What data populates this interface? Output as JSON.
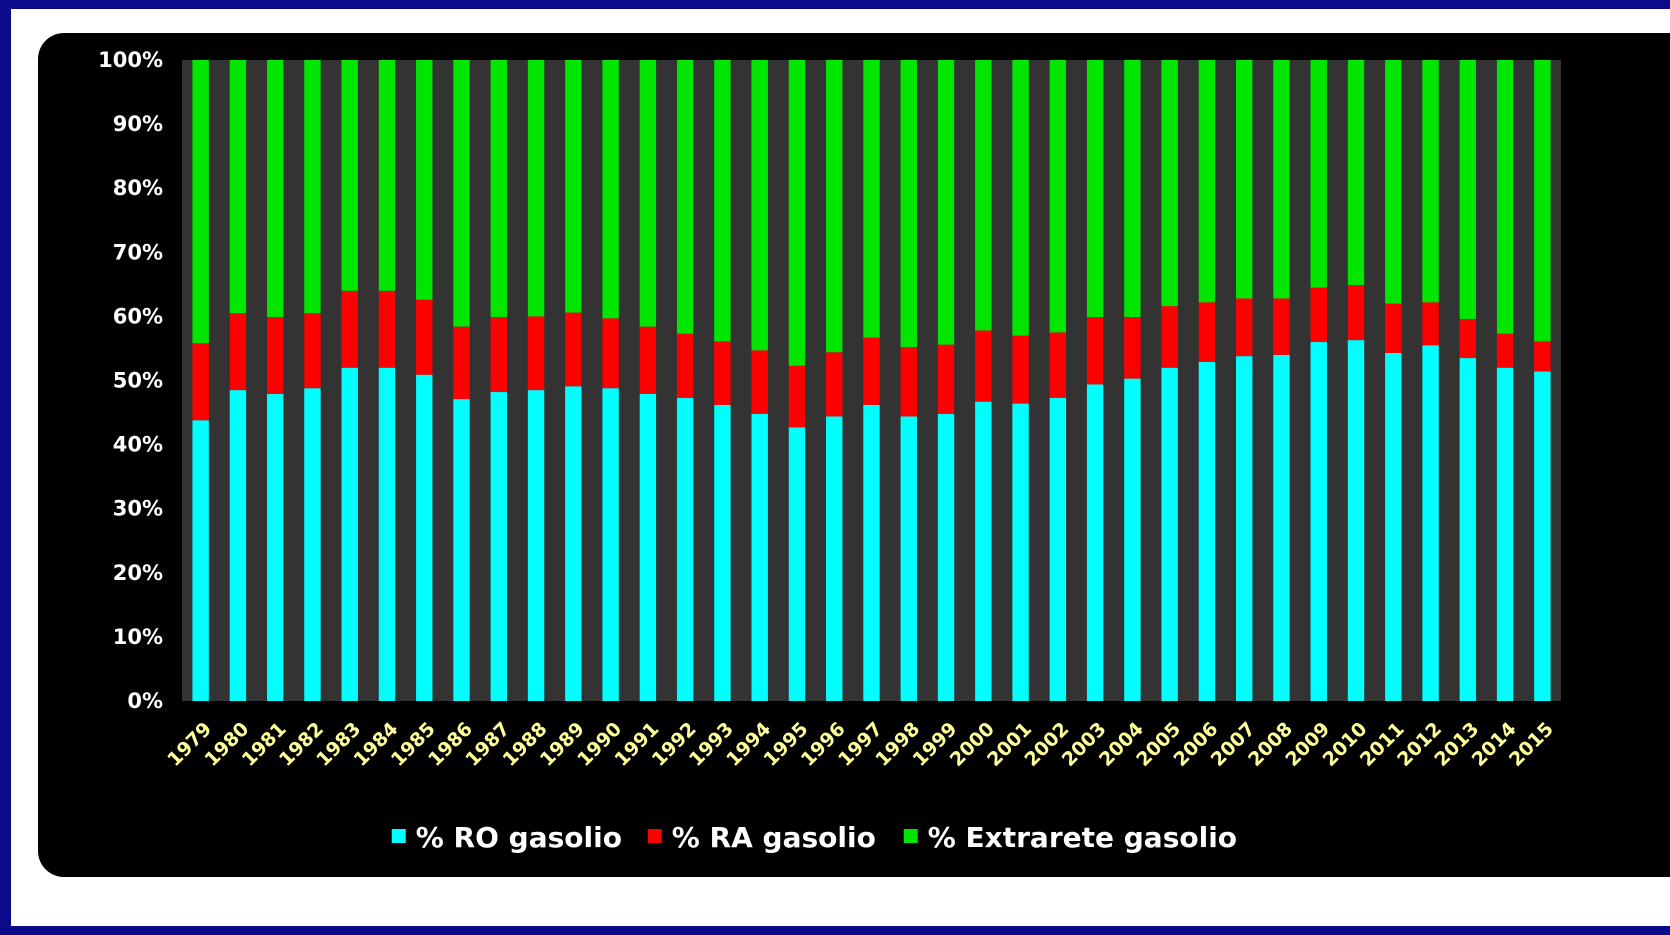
{
  "chart_data": {
    "type": "bar",
    "stacked": true,
    "percent_stacked": true,
    "categories": [
      "1979",
      "1980",
      "1981",
      "1982",
      "1983",
      "1984",
      "1985",
      "1986",
      "1987",
      "1988",
      "1989",
      "1990",
      "1991",
      "1992",
      "1993",
      "1994",
      "1995",
      "1996",
      "1997",
      "1998",
      "1999",
      "2000",
      "2001",
      "2002",
      "2003",
      "2004",
      "2005",
      "2006",
      "2007",
      "2008",
      "2009",
      "2010",
      "2011",
      "2012",
      "2013",
      "2014",
      "2015"
    ],
    "series": [
      {
        "name": "% RO gasolio",
        "color": "#00ffff",
        "values": [
          43.8,
          48.5,
          47.9,
          48.8,
          52,
          52,
          50.9,
          47.1,
          48.2,
          48.5,
          49.1,
          48.8,
          47.9,
          47.3,
          46.2,
          44.8,
          42.7,
          44.4,
          46.2,
          44.4,
          44.8,
          46.7,
          46.4,
          47.3,
          49.4,
          50.3,
          52,
          52.9,
          53.8,
          54,
          56,
          56.3,
          54.3,
          55.5,
          53.5,
          52,
          51.4
        ]
      },
      {
        "name": "% RA gasolio",
        "color": "#ff0000",
        "values": [
          12,
          12,
          12,
          11.7,
          12,
          12,
          11.7,
          11.3,
          11.7,
          11.5,
          11.5,
          10.9,
          10.5,
          10,
          9.9,
          9.9,
          9.6,
          10,
          10.5,
          10.8,
          10.8,
          11.1,
          10.6,
          10.2,
          10.5,
          9.6,
          9.6,
          9.3,
          9,
          8.8,
          8.5,
          8.6,
          7.7,
          6.7,
          6.1,
          5.3,
          4.7
        ]
      },
      {
        "name": "% Extrarete gasolio",
        "color": "#00e600",
        "values": [
          44.2,
          39.5,
          40.1,
          39.5,
          36,
          36,
          37.4,
          41.6,
          40.1,
          40,
          39.4,
          40.3,
          41.6,
          42.7,
          43.9,
          45.3,
          47.7,
          45.6,
          43.3,
          44.8,
          44.4,
          42.2,
          43,
          42.5,
          40.1,
          40.1,
          38.4,
          37.8,
          37.2,
          37.2,
          35.5,
          35.1,
          38,
          37.8,
          40.4,
          42.7,
          43.9
        ]
      }
    ],
    "y_ticks": [
      "0%",
      "10%",
      "20%",
      "30%",
      "40%",
      "50%",
      "60%",
      "70%",
      "80%",
      "90%",
      "100%"
    ],
    "ylim": [
      0,
      100
    ],
    "grid": false,
    "legend": "bottom",
    "colors": {
      "background": "#000000",
      "plot_area": "#333333",
      "frame": "#0a0a8a",
      "x_tick_text": "#ffff99",
      "y_tick_text": "#ffffff"
    }
  }
}
